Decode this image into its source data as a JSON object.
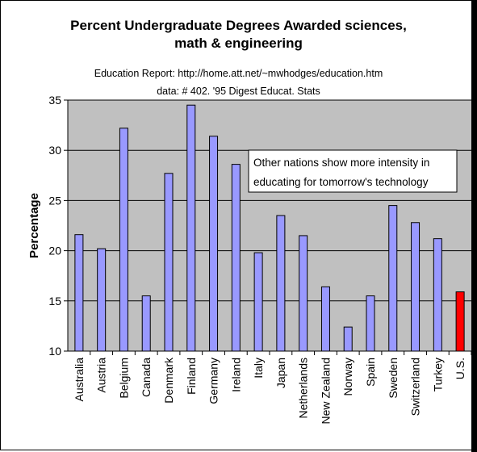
{
  "chart_data": {
    "type": "bar",
    "title_line1": "Percent Undergraduate Degrees Awarded sciences,",
    "title_line2": "math & engineering",
    "subtitle_line1": "Education Report: http://home.att.net/~mwhodges/education.htm",
    "subtitle_line2": "data: # 402. '95 Digest Educat. Stats",
    "ylabel": "Percentage",
    "xlabel": "",
    "ylim": [
      10,
      35
    ],
    "yticks": [
      10,
      15,
      20,
      25,
      30,
      35
    ],
    "grid": true,
    "categories": [
      "Australia",
      "Austria",
      "Belgium",
      "Canada",
      "Denmark",
      "Finland",
      "Germany",
      "Ireland",
      "Italy",
      "Japan",
      "Netherlands",
      "New Zealand",
      "Norway",
      "Spain",
      "Sweden",
      "Switzerland",
      "Turkey",
      "U.S."
    ],
    "values": [
      21.6,
      20.2,
      32.2,
      15.5,
      27.7,
      34.5,
      31.4,
      28.6,
      19.8,
      23.5,
      21.5,
      16.4,
      12.4,
      15.5,
      24.5,
      22.8,
      21.2,
      15.9
    ],
    "bar_color": "#9999ff",
    "highlight_category": "U.S.",
    "highlight_color": "#ff0000",
    "plot_background": "#c0c0c0",
    "annotation": {
      "line1": "Other nations show more intensity in",
      "line2": "educating for tomorrow's technology"
    }
  }
}
